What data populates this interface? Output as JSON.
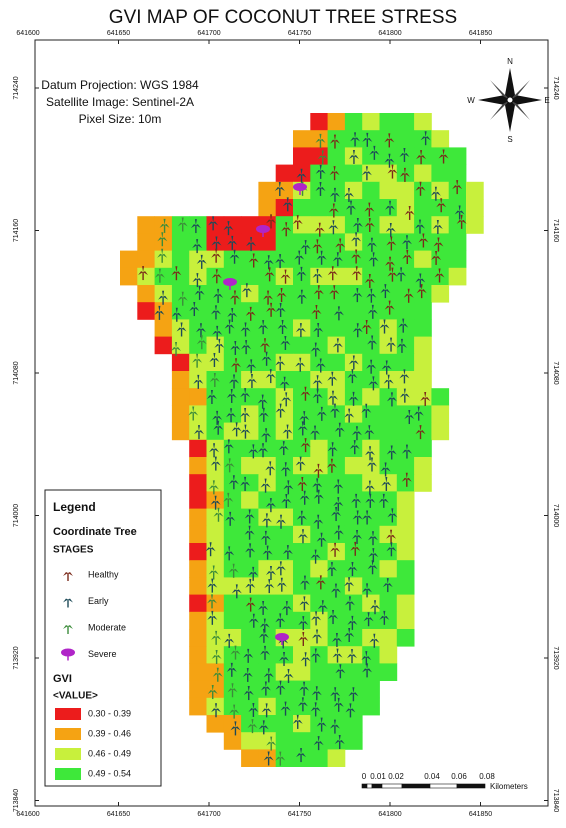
{
  "title": "GVI MAP OF COCONUT TREE STRESS",
  "info": [
    "Datum Projection: WGS 1984",
    "Satellite Image: Sentinel-2A",
    "Pixel Size: 10m"
  ],
  "compass": {
    "n": "N",
    "e": "E",
    "s": "S",
    "w": "W"
  },
  "x_ticks": [
    "641600",
    "641650",
    "641700",
    "641750",
    "641800",
    "641850"
  ],
  "y_ticks": [
    "714240",
    "714160",
    "714080",
    "714000",
    "713920",
    "713840"
  ],
  "legend": {
    "title": "Legend",
    "tree_heading": "Coordinate Tree",
    "stages_heading": "STAGES",
    "stages": [
      {
        "label": "Healthy",
        "color": "#7a2a1a"
      },
      {
        "label": "Early",
        "color": "#1d4a58"
      },
      {
        "label": "Moderate",
        "color": "#3c8c3a"
      },
      {
        "label": "Severe",
        "color": "#b025c8"
      }
    ],
    "gvi_heading": "GVI",
    "value_heading": "<VALUE>",
    "classes": [
      {
        "label": "0.30 - 0.39",
        "color": "#ec1c1c"
      },
      {
        "label": "0.39 - 0.46",
        "color": "#f5a313"
      },
      {
        "label": "0.46 - 0.49",
        "color": "#c8f03c"
      },
      {
        "label": "0.49 - 0.54",
        "color": "#3ee83a"
      }
    ]
  },
  "scale_bar": {
    "labels": [
      "0",
      "0.01",
      "0.02",
      "0.04",
      "0.06",
      "0.08"
    ],
    "unit": "Kilometers"
  }
}
